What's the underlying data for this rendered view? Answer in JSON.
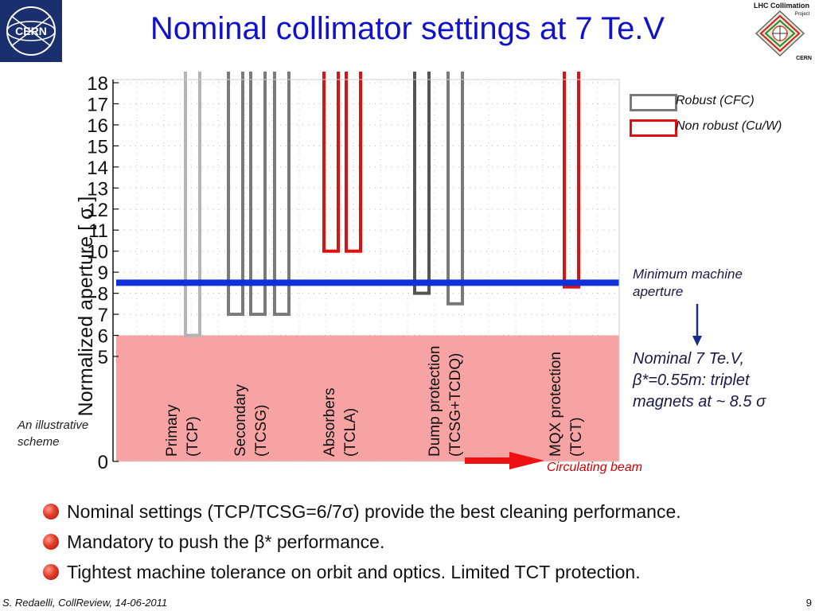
{
  "slide": {
    "title": "Nominal collimator settings at 7 Te.V",
    "footer_author": "S. Redaelli, CollReview, 14-06-2011",
    "page_number": "9"
  },
  "logos": {
    "cern": "CERN",
    "lhc_line1": "LHC Collimation",
    "lhc_line2": "Project",
    "lhc_line3": "CERN"
  },
  "legend": {
    "robust": "Robust (CFC)",
    "non_robust": "Non robust (Cu/W)"
  },
  "annotations": {
    "min_aperture_line1": "Minimum machine",
    "min_aperture_line2": "aperture",
    "nominal_line1": "Nominal 7 Te.V,",
    "nominal_line2": "β*=0.55m: triplet",
    "nominal_line3": "magnets at ~ 8.5 σ",
    "illustrative_line1": "An illustrative",
    "illustrative_line2": "scheme",
    "beam": "Circulating beam"
  },
  "bullets": [
    "Nominal settings (TCP/TCSG=6/7σ) provide the best cleaning performance.",
    "Mandatory to push the β* performance.",
    "Tightest machine tolerance on orbit and optics. Limited TCT protection."
  ],
  "chart_data": {
    "type": "bar",
    "ylabel": "Normalized aperture [ σ ]",
    "y_ticks": [
      0,
      5,
      6,
      7,
      8,
      9,
      10,
      11,
      12,
      13,
      14,
      15,
      16,
      17,
      18
    ],
    "ylim": [
      0,
      18
    ],
    "y_axis_break": [
      0,
      5
    ],
    "grid": true,
    "legend_position": "top-right",
    "machine_aperture": 8.5,
    "shaded_region": [
      0,
      6
    ],
    "groups": [
      {
        "line1": "Primary",
        "line2": "(TCP)"
      },
      {
        "line1": "Secondary",
        "line2": "(TCSG)"
      },
      {
        "line1": "Absorbers",
        "line2": "(TCLA)"
      },
      {
        "line1": "Dump protection",
        "line2": "(TCSG+TCDQ)"
      },
      {
        "line1": "MQX protection",
        "line2": "(TCT)"
      }
    ],
    "collimators": [
      {
        "group": 0,
        "aperture": 6,
        "type": "robust-light"
      },
      {
        "group": 1,
        "aperture": 7,
        "type": "robust"
      },
      {
        "group": 1,
        "aperture": 7,
        "type": "robust"
      },
      {
        "group": 1,
        "aperture": 7,
        "type": "robust"
      },
      {
        "group": 2,
        "aperture": 10,
        "type": "non-robust"
      },
      {
        "group": 2,
        "aperture": 10,
        "type": "non-robust"
      },
      {
        "group": 3,
        "aperture": 8,
        "type": "robust-dark"
      },
      {
        "group": 3,
        "aperture": 7.5,
        "type": "robust"
      },
      {
        "group": 4,
        "aperture": 8.3,
        "type": "non-robust"
      }
    ],
    "colors": {
      "robust": "#7a7a7a",
      "robust-light": "#b4b4b4",
      "robust-dark": "#555555",
      "non-robust": "#dd1111",
      "aperture_line": "#1030d8",
      "shade": "#f7a3a3",
      "arrow": "#ee1111"
    }
  }
}
